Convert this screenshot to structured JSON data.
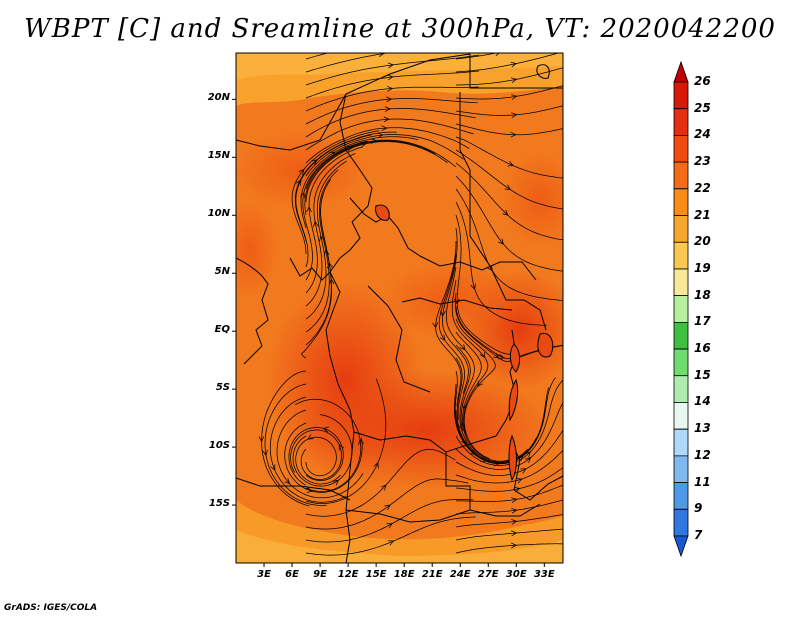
{
  "title": "WBPT [C] and Sreamline at 300hPa, VT: 2020042200",
  "credit": "GrADS: IGES/COLA",
  "map": {
    "variable": "Wet-bulb potential temperature",
    "units": "C",
    "level": "300hPa",
    "valid_time": "2020042200",
    "lat_range": [
      -20,
      24
    ],
    "lon_range": [
      0,
      35
    ],
    "lat_ticks": [
      {
        "value": 20,
        "label": "20N"
      },
      {
        "value": 15,
        "label": "15N"
      },
      {
        "value": 10,
        "label": "10N"
      },
      {
        "value": 5,
        "label": "5N"
      },
      {
        "value": 0,
        "label": "EQ"
      },
      {
        "value": -5,
        "label": "5S"
      },
      {
        "value": -10,
        "label": "10S"
      },
      {
        "value": -15,
        "label": "15S"
      }
    ],
    "lon_ticks": [
      {
        "value": 3,
        "label": "3E"
      },
      {
        "value": 6,
        "label": "6E"
      },
      {
        "value": 9,
        "label": "9E"
      },
      {
        "value": 12,
        "label": "12E"
      },
      {
        "value": 15,
        "label": "15E"
      },
      {
        "value": 18,
        "label": "18E"
      },
      {
        "value": 21,
        "label": "21E"
      },
      {
        "value": 24,
        "label": "24E"
      },
      {
        "value": 27,
        "label": "27E"
      },
      {
        "value": 30,
        "label": "30E"
      },
      {
        "value": 33,
        "label": "33E"
      }
    ]
  },
  "colorbar": {
    "labels": [
      "26",
      "25",
      "24",
      "23",
      "22",
      "21",
      "20",
      "19",
      "18",
      "17",
      "16",
      "15",
      "14",
      "13",
      "12",
      "11",
      "9",
      "7"
    ],
    "colors": [
      "#c00000",
      "#d81808",
      "#e43010",
      "#f04c10",
      "#f46c18",
      "#f88c18",
      "#f8a830",
      "#f8c850",
      "#f8e898",
      "#b8f0a0",
      "#40c040",
      "#70dc70",
      "#b0ecb0",
      "#e8f8f0",
      "#b0d8f8",
      "#80b8f0",
      "#5098e8",
      "#3078e0",
      "#1858d0"
    ]
  }
}
